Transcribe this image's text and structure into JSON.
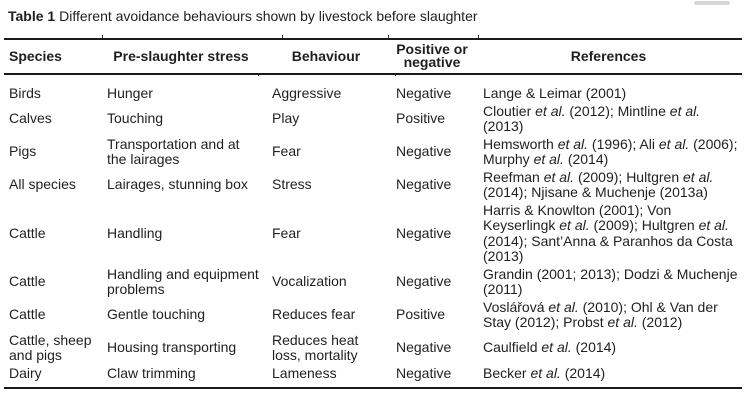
{
  "page": {
    "background": "#ffffff",
    "text_color": "#1f1f1f",
    "rule_color": "#1a1a1a"
  },
  "caption": {
    "label": "Table 1",
    "text": "Different avoidance behaviours shown by livestock before slaughter"
  },
  "table": {
    "headers": {
      "species": "Species",
      "stress": "Pre-slaughter stress",
      "behaviour": "Behaviour",
      "valence": "Positive or negative",
      "references": "References"
    },
    "rows": [
      {
        "species": "Birds",
        "stress": "Hunger",
        "behaviour": "Aggressive",
        "valence": "Negative",
        "references": [
          {
            "text": "Lange & Leimar (2001)",
            "italic": false
          }
        ]
      },
      {
        "species": "Calves",
        "stress": "Touching",
        "behaviour": "Play",
        "valence": "Positive",
        "references": [
          {
            "text": "Cloutier ",
            "italic": false
          },
          {
            "text": "et al.",
            "italic": true
          },
          {
            "text": " (2012); Mintline ",
            "italic": false
          },
          {
            "text": "et al.",
            "italic": true
          },
          {
            "text": " (2013)",
            "italic": false
          }
        ]
      },
      {
        "species": "Pigs",
        "stress": "Transportation and at the lairages",
        "behaviour": "Fear",
        "valence": "Negative",
        "references": [
          {
            "text": "Hemsworth ",
            "italic": false
          },
          {
            "text": "et al.",
            "italic": true
          },
          {
            "text": " (1996); Ali ",
            "italic": false
          },
          {
            "text": "et al.",
            "italic": true
          },
          {
            "text": " (2006); Murphy ",
            "italic": false
          },
          {
            "text": "et al.",
            "italic": true
          },
          {
            "text": " (2014)",
            "italic": false
          }
        ]
      },
      {
        "species": "All species",
        "stress": "Lairages, stunning box",
        "behaviour": "Stress",
        "valence": "Negative",
        "references": [
          {
            "text": "Reefman ",
            "italic": false
          },
          {
            "text": "et al.",
            "italic": true
          },
          {
            "text": " (2009); Hultgren ",
            "italic": false
          },
          {
            "text": "et al.",
            "italic": true
          },
          {
            "text": " (2014); Njisane & Muchenje (2013a)",
            "italic": false
          }
        ]
      },
      {
        "species": "Cattle",
        "stress": "Handling",
        "behaviour": "Fear",
        "valence": "Negative",
        "references": [
          {
            "text": "Harris & Knowlton (2001); Von Keyserlingk ",
            "italic": false
          },
          {
            "text": "et al.",
            "italic": true
          },
          {
            "text": " (2009); Hultgren ",
            "italic": false
          },
          {
            "text": "et al.",
            "italic": true
          },
          {
            "text": " (2014); Sant’Anna & Paranhos da Costa (2013)",
            "italic": false
          }
        ]
      },
      {
        "species": "Cattle",
        "stress": "Handling and equipment problems",
        "behaviour": "Vocalization",
        "valence": "Negative",
        "references": [
          {
            "text": "Grandin (2001; 2013); Dodzi & Muchenje (2011)",
            "italic": false
          }
        ]
      },
      {
        "species": "Cattle",
        "stress": "Gentle touching",
        "behaviour": "Reduces fear",
        "valence": "Positive",
        "references": [
          {
            "text": "Voslářová ",
            "italic": false
          },
          {
            "text": "et al.",
            "italic": true
          },
          {
            "text": " (2010); Ohl & Van der Stay (2012); Probst ",
            "italic": false
          },
          {
            "text": "et al.",
            "italic": true
          },
          {
            "text": " (2012)",
            "italic": false
          }
        ]
      },
      {
        "species": "Cattle, sheep and pigs",
        "stress": "Housing transporting",
        "behaviour": "Reduces heat loss, mortality",
        "valence": "Negative",
        "references": [
          {
            "text": "Caulfield ",
            "italic": false
          },
          {
            "text": "et al.",
            "italic": true
          },
          {
            "text": " (2014)",
            "italic": false
          }
        ]
      },
      {
        "species": "Dairy",
        "stress": "Claw trimming",
        "behaviour": "Lameness",
        "valence": "Negative",
        "references": [
          {
            "text": "Becker ",
            "italic": false
          },
          {
            "text": "et al.",
            "italic": true
          },
          {
            "text": " (2014)",
            "italic": false
          }
        ]
      }
    ]
  }
}
